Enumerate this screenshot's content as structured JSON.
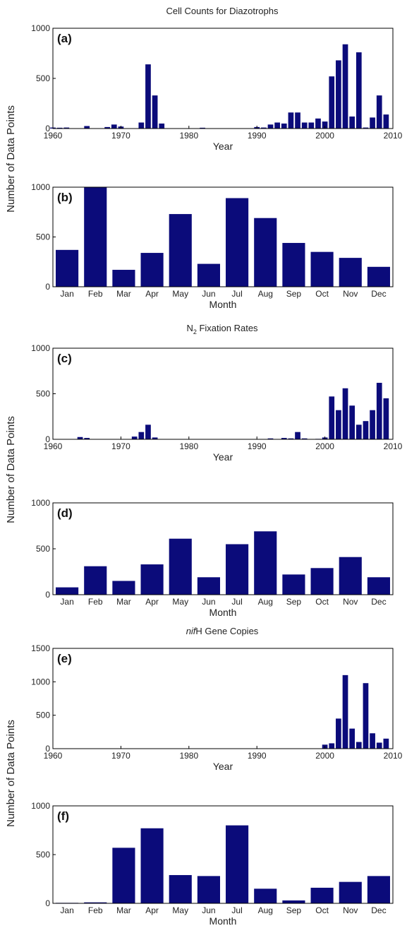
{
  "sections": {
    "cell": "Cell Counts for Diazotrophs",
    "n2_prefix": "N",
    "n2_sub": "2",
    "n2_suffix": " Fixation Rates",
    "nifh_italic": "nif",
    "nifh_suffix": "H Gene Copies"
  },
  "ylabels": {
    "top": "Number of Data Points",
    "mid": "Number of Data Points",
    "bot": "Number of Data Points"
  },
  "chart_data": [
    {
      "panel": "(a)",
      "type": "bar",
      "xlabel": "Year",
      "ylabel": "",
      "xlim": [
        1960,
        2010
      ],
      "ylim": [
        0,
        1000
      ],
      "xticks": [
        "1960",
        "1970",
        "1980",
        "1990",
        "2000",
        "2010"
      ],
      "yticks": [
        "0",
        "500",
        "1000"
      ],
      "x": [
        1960,
        1961,
        1962,
        1965,
        1968,
        1969,
        1970,
        1973,
        1974,
        1975,
        1976,
        1982,
        1990,
        1991,
        1992,
        1993,
        1994,
        1995,
        1996,
        1997,
        1998,
        1999,
        2000,
        2001,
        2002,
        2003,
        2004,
        2005,
        2006,
        2007,
        2008,
        2009
      ],
      "values": [
        10,
        8,
        10,
        25,
        15,
        40,
        20,
        60,
        640,
        330,
        50,
        8,
        15,
        10,
        40,
        60,
        50,
        160,
        160,
        60,
        60,
        100,
        70,
        520,
        680,
        840,
        120,
        760,
        10,
        110,
        330,
        140
      ]
    },
    {
      "panel": "(b)",
      "type": "bar",
      "xlabel": "Month",
      "ylabel": "",
      "ylim": [
        0,
        1000
      ],
      "yticks": [
        "0",
        "500",
        "1000"
      ],
      "categories": [
        "Jan",
        "Feb",
        "Mar",
        "Apr",
        "May",
        "Jun",
        "Jul",
        "Aug",
        "Sep",
        "Oct",
        "Nov",
        "Dec"
      ],
      "values": [
        370,
        1000,
        170,
        340,
        730,
        230,
        890,
        690,
        440,
        350,
        290,
        200
      ]
    },
    {
      "panel": "(c)",
      "type": "bar",
      "xlabel": "Year",
      "ylabel": "",
      "xlim": [
        1960,
        2010
      ],
      "ylim": [
        0,
        1000
      ],
      "xticks": [
        "1960",
        "1970",
        "1980",
        "1990",
        "2000",
        "2010"
      ],
      "yticks": [
        "0",
        "500",
        "1000"
      ],
      "x": [
        1964,
        1965,
        1972,
        1973,
        1974,
        1975,
        1992,
        1994,
        1995,
        1996,
        1997,
        1999,
        2000,
        2001,
        2002,
        2003,
        2004,
        2005,
        2006,
        2007,
        2008,
        2009
      ],
      "values": [
        25,
        15,
        30,
        80,
        160,
        20,
        10,
        15,
        10,
        80,
        10,
        5,
        20,
        470,
        320,
        560,
        370,
        160,
        200,
        320,
        620,
        450
      ]
    },
    {
      "panel": "(d)",
      "type": "bar",
      "xlabel": "Month",
      "ylabel": "",
      "ylim": [
        0,
        1000
      ],
      "yticks": [
        "0",
        "500",
        "1000"
      ],
      "categories": [
        "Jan",
        "Feb",
        "Mar",
        "Apr",
        "May",
        "Jun",
        "Jul",
        "Aug",
        "Sep",
        "Oct",
        "Nov",
        "Dec"
      ],
      "values": [
        80,
        310,
        150,
        330,
        610,
        190,
        550,
        690,
        220,
        290,
        410,
        190
      ]
    },
    {
      "panel": "(e)",
      "type": "bar",
      "xlabel": "Year",
      "ylabel": "",
      "xlim": [
        1960,
        2010
      ],
      "ylim": [
        0,
        1500
      ],
      "xticks": [
        "1960",
        "1970",
        "1980",
        "1990",
        "2000",
        "2010"
      ],
      "yticks": [
        "0",
        "500",
        "1000",
        "1500"
      ],
      "x": [
        2000,
        2001,
        2002,
        2003,
        2004,
        2005,
        2006,
        2007,
        2008,
        2009
      ],
      "values": [
        60,
        80,
        450,
        1100,
        300,
        100,
        980,
        230,
        90,
        150
      ]
    },
    {
      "panel": "(f)",
      "type": "bar",
      "xlabel": "Month",
      "ylabel": "",
      "ylim": [
        0,
        1000
      ],
      "yticks": [
        "0",
        "500",
        "1000"
      ],
      "categories": [
        "Jan",
        "Feb",
        "Mar",
        "Apr",
        "May",
        "Jun",
        "Jul",
        "Aug",
        "Sep",
        "Oct",
        "Nov",
        "Dec"
      ],
      "values": [
        5,
        10,
        570,
        770,
        290,
        280,
        800,
        150,
        30,
        160,
        220,
        280
      ]
    }
  ]
}
